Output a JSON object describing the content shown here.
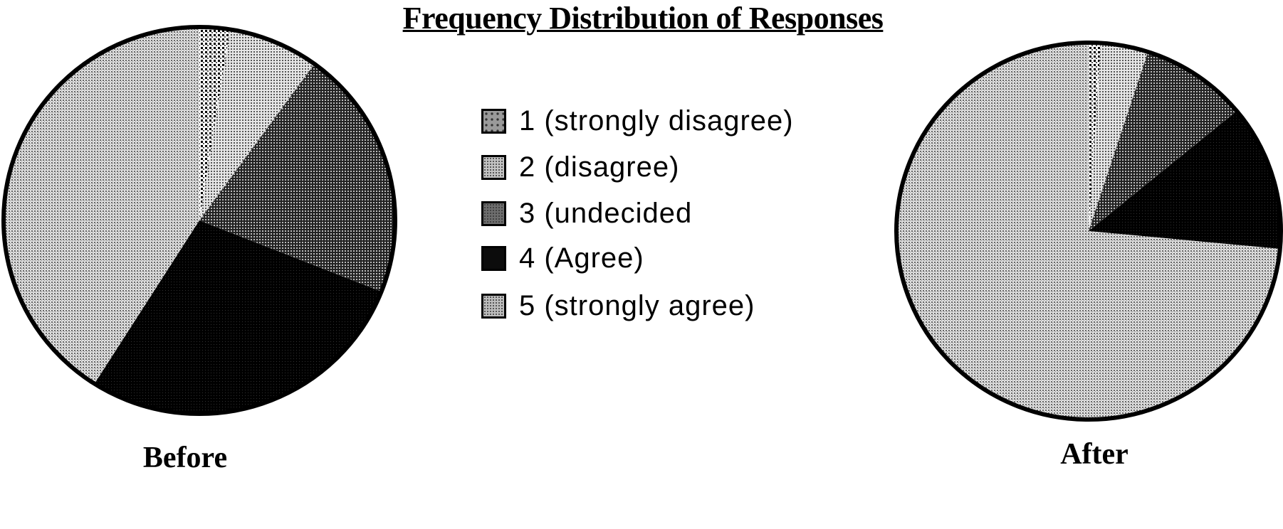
{
  "chart_data": [
    {
      "type": "pie",
      "title": "Frequency Distribution of Responses",
      "label": "Before",
      "categories": [
        "1 (strongly disagree)",
        "2 (disagree)",
        "3 (undecided",
        "4 (Agree)",
        "5 (strongly agree)"
      ],
      "values": [
        2.5,
        7.5,
        21,
        28,
        41
      ],
      "start": "12 o'clock, clockwise"
    },
    {
      "type": "pie",
      "label": "After",
      "categories": [
        "1 (strongly disagree)",
        "2 (disagree)",
        "3 (undecided",
        "4 (Agree)",
        "5 (strongly agree)"
      ],
      "values": [
        1,
        4,
        9,
        12.5,
        73.5
      ],
      "start": "12 o'clock, clockwise"
    }
  ],
  "title": "Frequency Distribution of Responses",
  "legend": {
    "placement": "center",
    "items": [
      {
        "label": "1 (strongly disagree)",
        "pattern": "dot-grid",
        "color": "#9a9a9a"
      },
      {
        "label": "2 (disagree)",
        "pattern": "light-dots",
        "color": "#c4c4c4"
      },
      {
        "label": "3 (undecided",
        "pattern": "medium-hatch",
        "color": "#6e6e6e"
      },
      {
        "label": "4 (Agree)",
        "pattern": "solid",
        "color": "#0c0c0c"
      },
      {
        "label": "5 (strongly agree)",
        "pattern": "light-dots",
        "color": "#bdbdbd"
      }
    ]
  },
  "labels": {
    "before": "Before",
    "after": "After"
  }
}
